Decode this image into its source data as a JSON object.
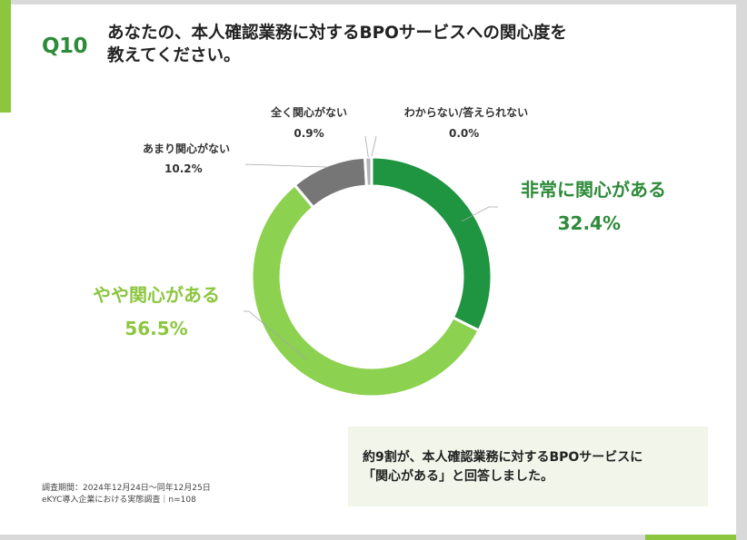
{
  "header": {
    "question_no": "Q10",
    "question_line1": "あなたの、本人確認業務に対するBPOサービスへの関心度を",
    "question_line2": "教えてください。"
  },
  "colors": {
    "frame": "#d9d9d9",
    "accent": "#8cc63f",
    "dark_green": "#2e8b3a",
    "summary_bg": "#f1f5ea"
  },
  "chart_data": {
    "type": "pie",
    "variant": "donut",
    "slices": [
      {
        "label": "非常に関心がある",
        "value": 32.4,
        "value_label": "32.4%",
        "color": "#1f9441"
      },
      {
        "label": "やや関心がある",
        "value": 56.5,
        "value_label": "56.5%",
        "color": "#8cd150"
      },
      {
        "label": "あまり関心がない",
        "value": 10.2,
        "value_label": "10.2%",
        "color": "#767676"
      },
      {
        "label": "全く関心がない",
        "value": 0.9,
        "value_label": "0.9%",
        "color": "#b3b3b3"
      },
      {
        "label": "わからない/答えられない",
        "value": 0.0,
        "value_label": "0.0%",
        "color": "#d9d9d9"
      }
    ]
  },
  "summary": {
    "line1": "約9割が、本人確認業務に対するBPOサービスに",
    "line2": "「関心がある」と回答しました。"
  },
  "footnote": {
    "line1": "調査期間：2024年12月24日〜同年12月25日",
    "line2": "eKYC導入企業における実態調査｜n=108"
  }
}
